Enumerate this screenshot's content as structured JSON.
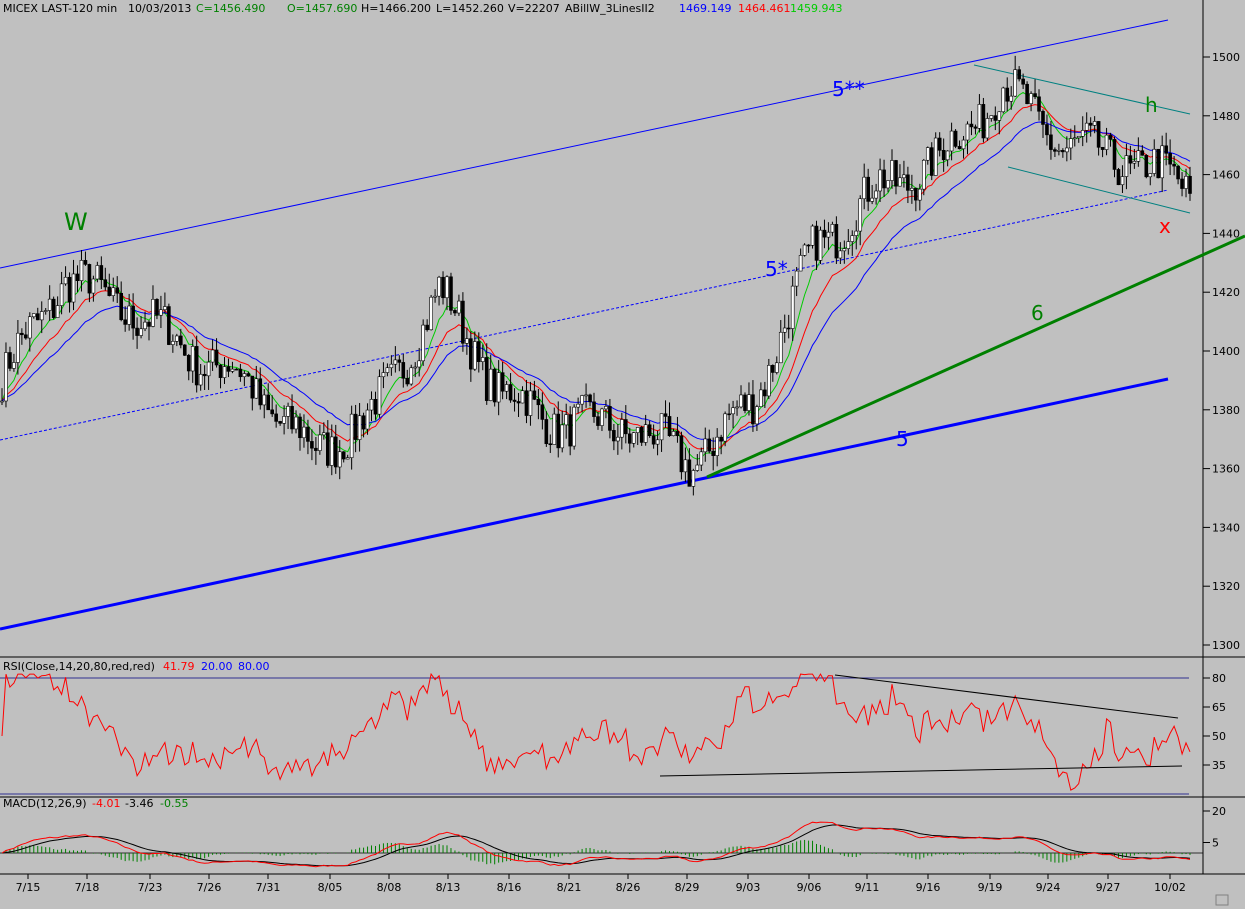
{
  "header": {
    "symbol": "MICEX LAST-120 min",
    "date": "10/03/2013",
    "close": "C=1456.490",
    "open": "O=1457.690",
    "high": "H=1466.200",
    "low": "L=1452.260",
    "volume": "V=22207",
    "study": "ABillW_3LinesII2",
    "line1": "1469.149",
    "line2": "1464.461",
    "line3": "1459.943"
  },
  "colors": {
    "bg": "#c0c0c0",
    "blue": "#0000ff",
    "red": "#ff0000",
    "green": "#00cc00",
    "dark_green": "#008000",
    "teal": "#008080",
    "grid": "#000080"
  },
  "rsi_label": "RSI(Close,14,20,80,red,red)",
  "rsi_value": "41.79",
  "rsi_low": "20.00",
  "rsi_high": "80.00",
  "macd_label": "MACD(12,26,9)",
  "macd_v1": "-4.01",
  "macd_v2": "-3.46",
  "macd_v3": "-0.55",
  "annotations": {
    "w": "W",
    "five_ss": "5**",
    "five_s": "5*",
    "h": "h",
    "x": "x",
    "six": "6",
    "five": "5"
  },
  "chart_data": [
    {
      "type": "candlestick",
      "title": "MICEX LAST-120 min",
      "y_ticks": [
        1300,
        1320,
        1340,
        1360,
        1380,
        1400,
        1420,
        1440,
        1460,
        1480,
        1500
      ],
      "ylim": [
        1296,
        1519
      ],
      "x_ticks": [
        "7/15",
        "7/18",
        "7/23",
        "7/26",
        "7/31",
        "8/05",
        "8/08",
        "8/13",
        "8/16",
        "8/21",
        "8/26",
        "8/29",
        "9/03",
        "9/06",
        "9/11",
        "9/16",
        "9/19",
        "9/24",
        "9/27",
        "10/02"
      ],
      "close_path": [
        [
          "7/15",
          1390
        ],
        [
          "7/18",
          1425
        ],
        [
          "7/23",
          1415
        ],
        [
          "7/26",
          1400
        ],
        [
          "7/31",
          1388
        ],
        [
          "8/05",
          1365
        ],
        [
          "8/08",
          1380
        ],
        [
          "8/13",
          1420
        ],
        [
          "8/16",
          1385
        ],
        [
          "8/21",
          1375
        ],
        [
          "8/26",
          1375
        ],
        [
          "8/29",
          1362
        ],
        [
          "9/03",
          1382
        ],
        [
          "9/06",
          1435
        ],
        [
          "9/11",
          1455
        ],
        [
          "9/16",
          1465
        ],
        [
          "9/19",
          1490
        ],
        [
          "9/24",
          1470
        ],
        [
          "9/27",
          1465
        ],
        [
          "10/02",
          1456
        ]
      ],
      "ma_3lines": {
        "blue": 1469.149,
        "red": 1464.461,
        "green": 1459.943
      },
      "grid": false
    },
    {
      "type": "line",
      "title": "RSI(Close,14,20,80,red,red)",
      "y_ticks": [
        35,
        50,
        65,
        80
      ],
      "levels": [
        20,
        80
      ],
      "last": 41.79
    },
    {
      "type": "line",
      "title": "MACD(12,26,9)",
      "y_ticks": [
        5,
        20
      ],
      "last": {
        "macd": -4.01,
        "signal": -3.46,
        "hist": -0.55
      }
    }
  ]
}
